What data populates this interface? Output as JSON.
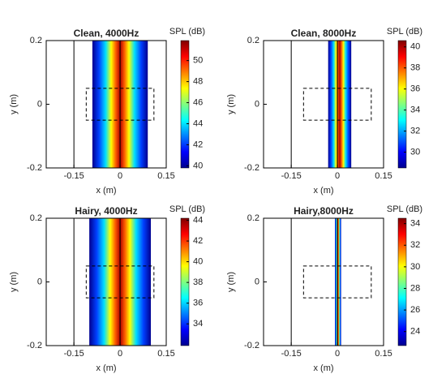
{
  "chart_data": [
    {
      "type": "contour",
      "title": "Clean, 4000Hz",
      "xlabel": "x (m)",
      "ylabel": "y (m)",
      "colorbar_label": "SPL (dB)",
      "colormap": "jet",
      "xlim": [
        -0.24,
        0.15
      ],
      "ylim": [
        -0.2,
        0.2
      ],
      "xticks": [
        -0.15,
        0,
        0.15
      ],
      "yticks": [
        -0.2,
        0,
        0.2
      ],
      "clim": [
        39.8,
        51.9
      ],
      "cticks": [
        40,
        42,
        44,
        46,
        48,
        50
      ]
    },
    {
      "type": "contour",
      "title": "Clean, 8000Hz",
      "xlabel": "x (m)",
      "ylabel": "y (m)",
      "colorbar_label": "SPL (dB)",
      "colormap": "jet",
      "xlim": [
        -0.24,
        0.15
      ],
      "ylim": [
        -0.2,
        0.2
      ],
      "xticks": [
        -0.15,
        0,
        0.15
      ],
      "yticks": [
        -0.2,
        0,
        0.2
      ],
      "clim": [
        28.5,
        40.6
      ],
      "cticks": [
        30,
        32,
        34,
        36,
        38,
        40
      ]
    },
    {
      "type": "contour",
      "title": "Hairy, 4000Hz",
      "xlabel": "x (m)",
      "ylabel": "y (m)",
      "colorbar_label": "SPL (dB)",
      "colormap": "jet",
      "xlim": [
        -0.24,
        0.15
      ],
      "ylim": [
        -0.2,
        0.2
      ],
      "xticks": [
        -0.15,
        0,
        0.15
      ],
      "yticks": [
        -0.2,
        0,
        0.2
      ],
      "clim": [
        31.9,
        44.2
      ],
      "cticks": [
        34,
        36,
        38,
        40,
        42,
        44
      ]
    },
    {
      "type": "contour",
      "title": "Hairy,8000Hz",
      "xlabel": "x (m)",
      "ylabel": "y (m)",
      "colorbar_label": "SPL (dB)",
      "colormap": "jet",
      "xlim": [
        -0.24,
        0.15
      ],
      "ylim": [
        -0.2,
        0.2
      ],
      "xticks": [
        -0.15,
        0,
        0.15
      ],
      "yticks": [
        -0.2,
        0,
        0.2
      ],
      "clim": [
        22.7,
        34.5
      ],
      "cticks": [
        24,
        26,
        28,
        30,
        32,
        34
      ]
    }
  ]
}
